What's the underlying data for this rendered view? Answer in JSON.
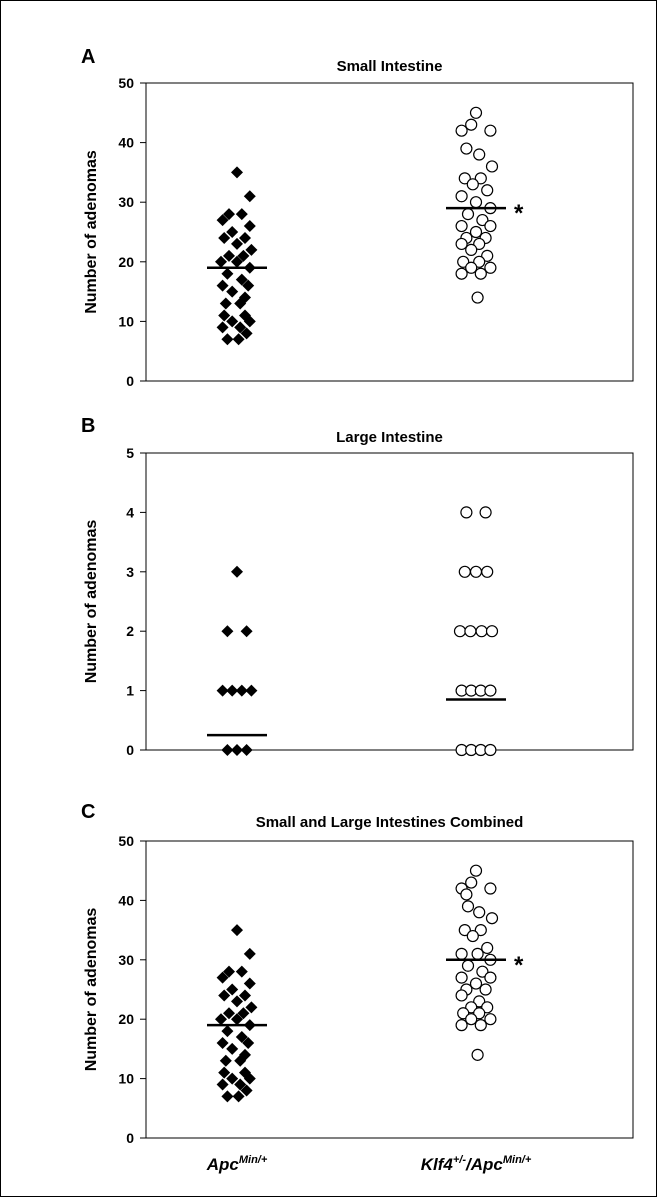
{
  "figure": {
    "x_group_labels": [
      {
        "parts": [
          "Apc",
          "Min/+"
        ]
      },
      {
        "parts": [
          "Klf4",
          "+/-",
          "/Apc",
          "Min/+"
        ]
      }
    ]
  },
  "chart_data": [
    {
      "type": "scatter",
      "panel_letter": "A",
      "title": "Small Intestine",
      "ylabel": "Number of adenomas",
      "ylim": [
        0,
        50
      ],
      "yticks": [
        "0",
        "10",
        "20",
        "30",
        "40",
        "50"
      ],
      "categories": [
        "Apc Min/+",
        "Klf4 +/- /Apc Min/+"
      ],
      "series": [
        {
          "marker": "filled-diamond",
          "mean": 19,
          "points": [
            {
              "v": 35,
              "o": 0
            },
            {
              "v": 31,
              "o": 0.8
            },
            {
              "v": 28,
              "o": -0.5
            },
            {
              "v": 28,
              "o": 0.3
            },
            {
              "v": 27,
              "o": -0.9
            },
            {
              "v": 26,
              "o": 0.8
            },
            {
              "v": 25,
              "o": -0.3
            },
            {
              "v": 24,
              "o": 0.5
            },
            {
              "v": 24,
              "o": -0.8
            },
            {
              "v": 23,
              "o": 0
            },
            {
              "v": 22,
              "o": 0.9
            },
            {
              "v": 21,
              "o": -0.5
            },
            {
              "v": 21,
              "o": 0.4
            },
            {
              "v": 20,
              "o": -1
            },
            {
              "v": 20,
              "o": 0
            },
            {
              "v": 19,
              "o": 0.8
            },
            {
              "v": 18,
              "o": -0.6
            },
            {
              "v": 17,
              "o": 0.3
            },
            {
              "v": 16,
              "o": -0.9
            },
            {
              "v": 16,
              "o": 0.7
            },
            {
              "v": 15,
              "o": -0.3
            },
            {
              "v": 14,
              "o": 0.5
            },
            {
              "v": 13,
              "o": -0.7
            },
            {
              "v": 13,
              "o": 0.2
            },
            {
              "v": 11,
              "o": -0.8
            },
            {
              "v": 11,
              "o": 0.5
            },
            {
              "v": 10,
              "o": -0.3
            },
            {
              "v": 10,
              "o": 0.8
            },
            {
              "v": 9,
              "o": -0.9
            },
            {
              "v": 9,
              "o": 0.2
            },
            {
              "v": 8,
              "o": 0.6
            },
            {
              "v": 7,
              "o": -0.6
            },
            {
              "v": 7,
              "o": 0.1
            }
          ]
        },
        {
          "marker": "open-circle",
          "mean": 29,
          "significance": "*",
          "points": [
            {
              "v": 45,
              "o": 0
            },
            {
              "v": 43,
              "o": -0.3
            },
            {
              "v": 42,
              "o": -0.9
            },
            {
              "v": 42,
              "o": 0.9
            },
            {
              "v": 39,
              "o": -0.6
            },
            {
              "v": 38,
              "o": 0.2
            },
            {
              "v": 36,
              "o": 1
            },
            {
              "v": 34,
              "o": -0.7
            },
            {
              "v": 34,
              "o": 0.3
            },
            {
              "v": 33,
              "o": -0.2
            },
            {
              "v": 32,
              "o": 0.7
            },
            {
              "v": 31,
              "o": -0.9
            },
            {
              "v": 30,
              "o": 0
            },
            {
              "v": 29,
              "o": 0.9
            },
            {
              "v": 28,
              "o": -0.5
            },
            {
              "v": 27,
              "o": 0.4
            },
            {
              "v": 26,
              "o": -0.9
            },
            {
              "v": 26,
              "o": 0.9
            },
            {
              "v": 25,
              "o": 0
            },
            {
              "v": 24,
              "o": -0.6
            },
            {
              "v": 24,
              "o": 0.6
            },
            {
              "v": 23,
              "o": -0.9
            },
            {
              "v": 23,
              "o": 0.2
            },
            {
              "v": 22,
              "o": -0.3
            },
            {
              "v": 21,
              "o": 0.7
            },
            {
              "v": 20,
              "o": -0.8
            },
            {
              "v": 20,
              "o": 0.2
            },
            {
              "v": 19,
              "o": -0.3
            },
            {
              "v": 19,
              "o": 0.9
            },
            {
              "v": 18,
              "o": -0.9
            },
            {
              "v": 18,
              "o": 0.3
            },
            {
              "v": 14,
              "o": 0.1
            }
          ]
        }
      ]
    },
    {
      "type": "scatter",
      "panel_letter": "B",
      "title": "Large Intestine",
      "ylabel": "Number of adenomas",
      "ylim": [
        0,
        5
      ],
      "yticks": [
        "0",
        "1",
        "2",
        "3",
        "4",
        "5"
      ],
      "categories": [
        "Apc Min/+",
        "Klf4 +/- /Apc Min/+"
      ],
      "series": [
        {
          "marker": "filled-diamond",
          "mean": 0.25,
          "points": [
            {
              "v": 3,
              "o": 0
            },
            {
              "v": 2,
              "o": -0.6
            },
            {
              "v": 2,
              "o": 0.6
            },
            {
              "v": 1,
              "o": -0.9
            },
            {
              "v": 1,
              "o": -0.3
            },
            {
              "v": 1,
              "o": 0.3
            },
            {
              "v": 1,
              "o": 0.9
            },
            {
              "v": 0,
              "o": -0.6
            },
            {
              "v": 0,
              "o": 0
            },
            {
              "v": 0,
              "o": 0.6
            }
          ]
        },
        {
          "marker": "open-circle",
          "mean": 0.85,
          "points": [
            {
              "v": 4,
              "o": -0.6
            },
            {
              "v": 4,
              "o": 0.6
            },
            {
              "v": 3,
              "o": -0.7
            },
            {
              "v": 3,
              "o": 0
            },
            {
              "v": 3,
              "o": 0.7
            },
            {
              "v": 2,
              "o": -1
            },
            {
              "v": 2,
              "o": -0.35
            },
            {
              "v": 2,
              "o": 0.35
            },
            {
              "v": 2,
              "o": 1
            },
            {
              "v": 1,
              "o": -0.9
            },
            {
              "v": 1,
              "o": -0.3
            },
            {
              "v": 1,
              "o": 0.3
            },
            {
              "v": 1,
              "o": 0.9
            },
            {
              "v": 0,
              "o": -0.9
            },
            {
              "v": 0,
              "o": -0.3
            },
            {
              "v": 0,
              "o": 0.3
            },
            {
              "v": 0,
              "o": 0.9
            }
          ]
        }
      ]
    },
    {
      "type": "scatter",
      "panel_letter": "C",
      "title": "Small and Large Intestines Combined",
      "ylabel": "Number of adenomas",
      "ylim": [
        0,
        50
      ],
      "yticks": [
        "0",
        "10",
        "20",
        "30",
        "40",
        "50"
      ],
      "categories": [
        "Apc Min/+",
        "Klf4 +/- /Apc Min/+"
      ],
      "series": [
        {
          "marker": "filled-diamond",
          "mean": 19,
          "points": [
            {
              "v": 35,
              "o": 0
            },
            {
              "v": 31,
              "o": 0.8
            },
            {
              "v": 28,
              "o": -0.5
            },
            {
              "v": 28,
              "o": 0.3
            },
            {
              "v": 27,
              "o": -0.9
            },
            {
              "v": 26,
              "o": 0.8
            },
            {
              "v": 25,
              "o": -0.3
            },
            {
              "v": 24,
              "o": 0.5
            },
            {
              "v": 24,
              "o": -0.8
            },
            {
              "v": 23,
              "o": 0
            },
            {
              "v": 22,
              "o": 0.9
            },
            {
              "v": 21,
              "o": -0.5
            },
            {
              "v": 21,
              "o": 0.4
            },
            {
              "v": 20,
              "o": -1
            },
            {
              "v": 20,
              "o": 0
            },
            {
              "v": 19,
              "o": 0.8
            },
            {
              "v": 18,
              "o": -0.6
            },
            {
              "v": 17,
              "o": 0.3
            },
            {
              "v": 16,
              "o": -0.9
            },
            {
              "v": 16,
              "o": 0.7
            },
            {
              "v": 15,
              "o": -0.3
            },
            {
              "v": 14,
              "o": 0.5
            },
            {
              "v": 13,
              "o": -0.7
            },
            {
              "v": 13,
              "o": 0.2
            },
            {
              "v": 11,
              "o": -0.8
            },
            {
              "v": 11,
              "o": 0.5
            },
            {
              "v": 10,
              "o": -0.3
            },
            {
              "v": 10,
              "o": 0.8
            },
            {
              "v": 9,
              "o": -0.9
            },
            {
              "v": 9,
              "o": 0.2
            },
            {
              "v": 8,
              "o": 0.6
            },
            {
              "v": 7,
              "o": -0.6
            },
            {
              "v": 7,
              "o": 0.1
            }
          ]
        },
        {
          "marker": "open-circle",
          "mean": 30,
          "significance": "*",
          "points": [
            {
              "v": 45,
              "o": 0
            },
            {
              "v": 43,
              "o": -0.3
            },
            {
              "v": 42,
              "o": -0.9
            },
            {
              "v": 42,
              "o": 0.9
            },
            {
              "v": 41,
              "o": -0.6
            },
            {
              "v": 39,
              "o": -0.5
            },
            {
              "v": 38,
              "o": 0.2
            },
            {
              "v": 37,
              "o": 1
            },
            {
              "v": 35,
              "o": -0.7
            },
            {
              "v": 35,
              "o": 0.3
            },
            {
              "v": 34,
              "o": -0.2
            },
            {
              "v": 32,
              "o": 0.7
            },
            {
              "v": 31,
              "o": -0.9
            },
            {
              "v": 31,
              "o": 0.1
            },
            {
              "v": 30,
              "o": 0.9
            },
            {
              "v": 29,
              "o": -0.5
            },
            {
              "v": 28,
              "o": 0.4
            },
            {
              "v": 27,
              "o": -0.9
            },
            {
              "v": 27,
              "o": 0.9
            },
            {
              "v": 26,
              "o": 0
            },
            {
              "v": 25,
              "o": -0.6
            },
            {
              "v": 25,
              "o": 0.6
            },
            {
              "v": 24,
              "o": -0.9
            },
            {
              "v": 23,
              "o": 0.2
            },
            {
              "v": 22,
              "o": -0.3
            },
            {
              "v": 22,
              "o": 0.7
            },
            {
              "v": 21,
              "o": -0.8
            },
            {
              "v": 21,
              "o": 0.2
            },
            {
              "v": 20,
              "o": -0.3
            },
            {
              "v": 20,
              "o": 0.9
            },
            {
              "v": 19,
              "o": -0.9
            },
            {
              "v": 19,
              "o": 0.3
            },
            {
              "v": 14,
              "o": 0.1
            }
          ]
        }
      ]
    }
  ]
}
